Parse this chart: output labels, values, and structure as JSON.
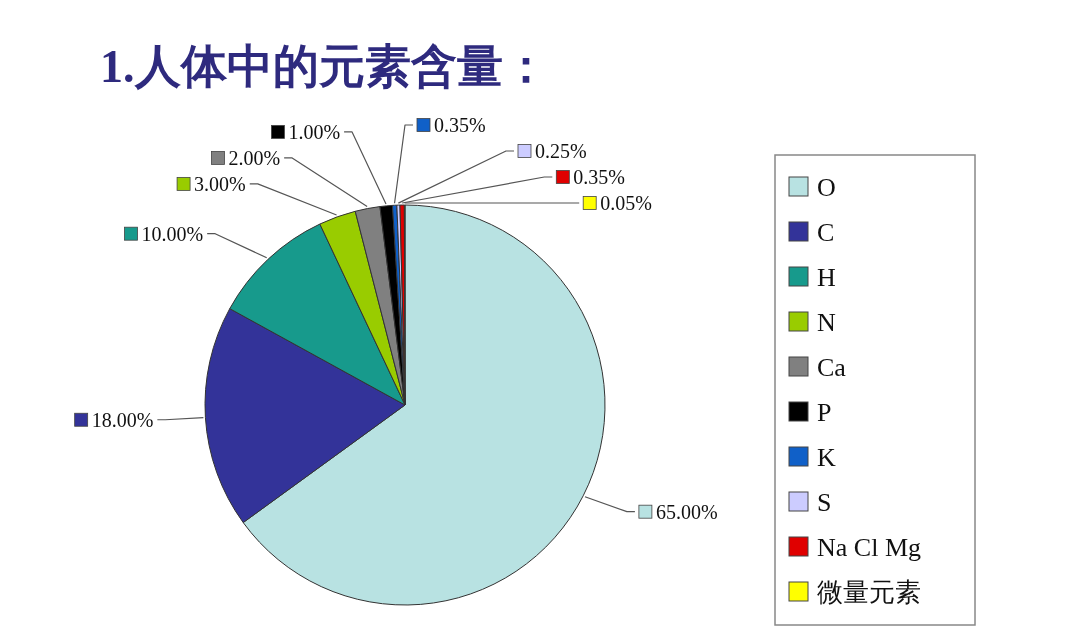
{
  "chart_data": {
    "type": "pie",
    "title": "1.人体中的元素含量：",
    "categories": [
      "O",
      "C",
      "H",
      "N",
      "Ca",
      "P",
      "K",
      "S",
      "Na Cl Mg",
      "微量元素"
    ],
    "values": [
      65,
      18,
      10,
      3,
      2,
      1,
      0.35,
      0.25,
      0.35,
      0.05
    ],
    "colors": [
      "#b8e2e2",
      "#333399",
      "#179a8c",
      "#99cc00",
      "#808080",
      "#000000",
      "#1060c8",
      "#ccccff",
      "#e00000",
      "#ffff00"
    ],
    "value_labels": [
      "65.00%",
      "18.00%",
      "10.00%",
      "3.00%",
      "2.00%",
      "1.00%",
      "0.35%",
      "0.25%",
      "0.35%",
      "0.05%"
    ],
    "legend": "right"
  }
}
